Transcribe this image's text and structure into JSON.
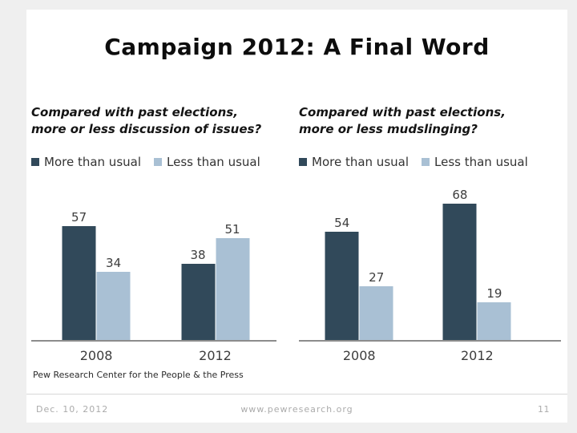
{
  "slide": {
    "title": "Campaign 2012: A Final Word",
    "source": "Pew Research Center for the People & the Press",
    "footer": {
      "date": "Dec. 10, 2012",
      "website": "www.pewresearch.org",
      "page": "11"
    }
  },
  "colors": {
    "more": "#31495A",
    "less": "#A9C0D4",
    "axis": "#8C8C8C"
  },
  "chart_data": [
    {
      "type": "bar",
      "title": "Compared with past elections, more or less discussion of issues?",
      "title_lines": [
        "Compared with past elections,",
        "more or less discussion of issues?"
      ],
      "categories": [
        "2008",
        "2012"
      ],
      "series": [
        {
          "name": "More than usual",
          "values": [
            57,
            38
          ]
        },
        {
          "name": "Less than usual",
          "values": [
            34,
            51
          ]
        }
      ],
      "legend_position": "top",
      "data_labels": true,
      "grid": false,
      "ylim": [
        0,
        80
      ],
      "xlabel": "",
      "ylabel": ""
    },
    {
      "type": "bar",
      "title": "Compared with past elections, more or less mudslinging?",
      "title_lines": [
        "Compared with past elections,",
        "more or less mudslinging?"
      ],
      "categories": [
        "2008",
        "2012"
      ],
      "series": [
        {
          "name": "More than usual",
          "values": [
            54,
            68
          ]
        },
        {
          "name": "Less than usual",
          "values": [
            27,
            19
          ]
        }
      ],
      "legend_position": "top",
      "data_labels": true,
      "grid": false,
      "ylim": [
        0,
        80
      ],
      "xlabel": "",
      "ylabel": ""
    }
  ]
}
